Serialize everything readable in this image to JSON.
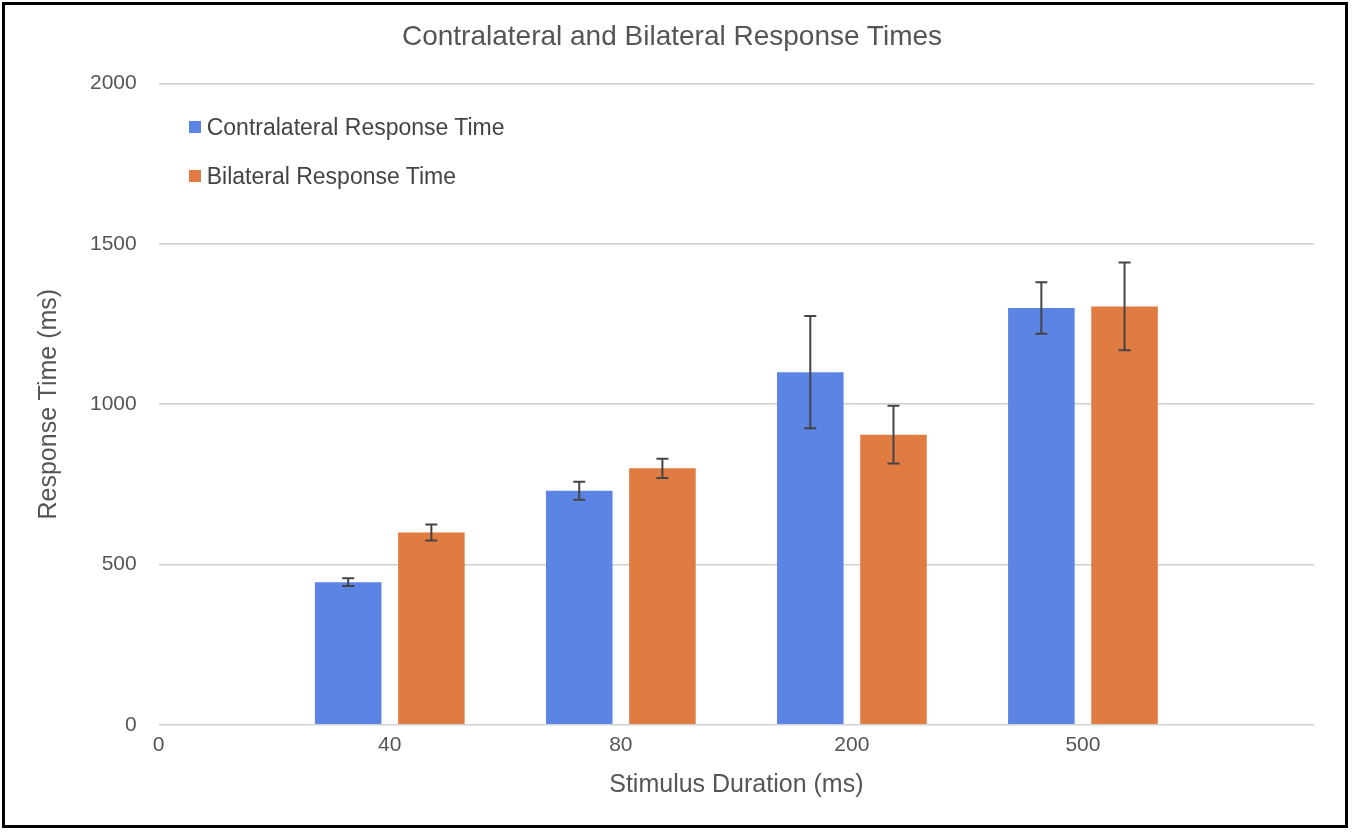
{
  "chart_data": {
    "type": "bar",
    "title": "Contralateral and Bilateral Response Times",
    "xlabel": "Stimulus Duration (ms)",
    "ylabel": "Response Time (ms)",
    "categories": [
      "0",
      "40",
      "80",
      "200",
      "500",
      null
    ],
    "series": [
      {
        "name": "Contralateral Response Time",
        "color": "#5b84e4",
        "values": [
          null,
          445,
          730,
          1100,
          1300,
          null
        ],
        "errors": [
          null,
          12,
          28,
          175,
          80,
          null
        ]
      },
      {
        "name": "Bilateral Response Time",
        "color": "#e07b42",
        "values": [
          null,
          600,
          800,
          905,
          1305,
          null
        ],
        "errors": [
          null,
          25,
          30,
          90,
          137,
          null
        ]
      }
    ],
    "ylim": [
      0,
      2000
    ],
    "yticks": [
      0,
      500,
      1000,
      1500,
      2000
    ],
    "grid": "y",
    "legend": "top left"
  }
}
